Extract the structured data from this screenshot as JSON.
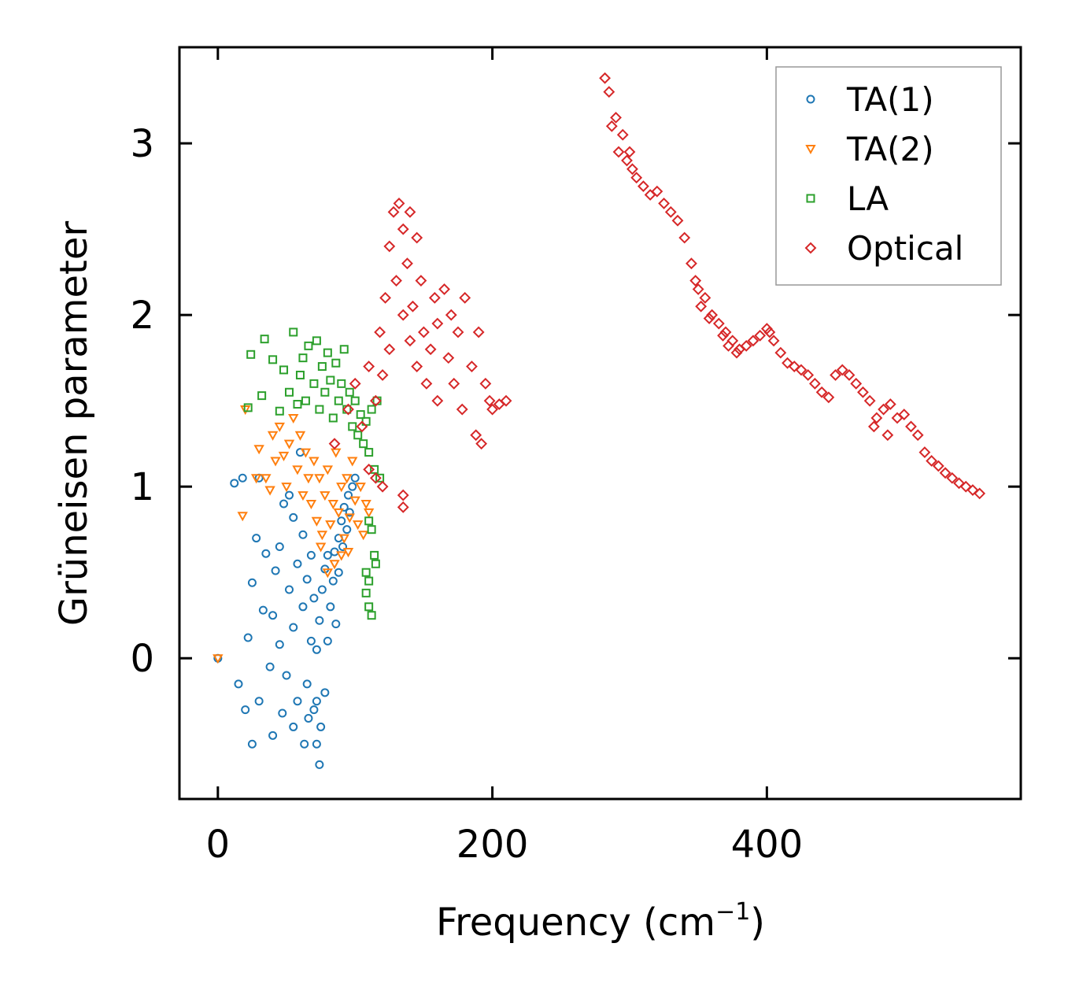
{
  "chart_data": {
    "type": "scatter",
    "title": "",
    "xlabel": "Frequency (cm",
    "xlabel_sup": "−1",
    "xlabel_tail": ")",
    "ylabel": "Grüneisen parameter",
    "xlim": [
      -28,
      585
    ],
    "ylim": [
      -0.82,
      3.56
    ],
    "xticks": [
      0,
      200,
      400
    ],
    "xtick_labels": [
      "0",
      "200",
      "400"
    ],
    "yticks": [
      0,
      1,
      2,
      3
    ],
    "ytick_labels": [
      "0",
      "1",
      "2",
      "3"
    ],
    "grid": false,
    "legend_position": "top-right",
    "series": [
      {
        "name": "TA(1)",
        "marker": "circle",
        "color": "#1f77b4",
        "points": [
          [
            0,
            0
          ],
          [
            12,
            1.02
          ],
          [
            18,
            1.05
          ],
          [
            22,
            0.12
          ],
          [
            25,
            0.44
          ],
          [
            28,
            0.7
          ],
          [
            30,
            1.05
          ],
          [
            33,
            0.28
          ],
          [
            35,
            0.61
          ],
          [
            38,
            -0.05
          ],
          [
            40,
            0.25
          ],
          [
            42,
            0.51
          ],
          [
            45,
            0.08
          ],
          [
            45,
            0.65
          ],
          [
            48,
            0.9
          ],
          [
            50,
            -0.1
          ],
          [
            52,
            0.4
          ],
          [
            52,
            0.95
          ],
          [
            55,
            0.18
          ],
          [
            55,
            0.82
          ],
          [
            58,
            -0.25
          ],
          [
            58,
            0.55
          ],
          [
            60,
            1.2
          ],
          [
            62,
            0.3
          ],
          [
            62,
            0.72
          ],
          [
            65,
            -0.15
          ],
          [
            65,
            0.46
          ],
          [
            68,
            0.1
          ],
          [
            68,
            0.6
          ],
          [
            70,
            -0.3
          ],
          [
            70,
            0.35
          ],
          [
            72,
            -0.5
          ],
          [
            72,
            0.05
          ],
          [
            74,
            -0.62
          ],
          [
            74,
            0.22
          ],
          [
            75,
            -0.4
          ],
          [
            76,
            0.4
          ],
          [
            78,
            -0.2
          ],
          [
            78,
            0.52
          ],
          [
            80,
            0.1
          ],
          [
            80,
            0.6
          ],
          [
            82,
            0.3
          ],
          [
            84,
            0.45
          ],
          [
            85,
            0.62
          ],
          [
            86,
            0.2
          ],
          [
            88,
            0.7
          ],
          [
            88,
            0.5
          ],
          [
            90,
            0.8
          ],
          [
            91,
            0.65
          ],
          [
            92,
            0.88
          ],
          [
            94,
            0.75
          ],
          [
            95,
            0.95
          ],
          [
            96,
            0.85
          ],
          [
            98,
            1.0
          ],
          [
            100,
            1.05
          ],
          [
            20,
            -0.3
          ],
          [
            15,
            -0.15
          ],
          [
            25,
            -0.5
          ],
          [
            30,
            -0.25
          ],
          [
            40,
            -0.45
          ],
          [
            47,
            -0.32
          ],
          [
            55,
            -0.4
          ],
          [
            63,
            -0.5
          ],
          [
            66,
            -0.35
          ],
          [
            72,
            -0.25
          ]
        ]
      },
      {
        "name": "TA(2)",
        "marker": "triangle-down",
        "color": "#ff7f0e",
        "points": [
          [
            0,
            0
          ],
          [
            18,
            0.83
          ],
          [
            20,
            1.45
          ],
          [
            28,
            1.05
          ],
          [
            30,
            1.22
          ],
          [
            35,
            1.05
          ],
          [
            38,
            0.98
          ],
          [
            40,
            1.3
          ],
          [
            42,
            1.15
          ],
          [
            45,
            1.35
          ],
          [
            48,
            1.18
          ],
          [
            50,
            1.0
          ],
          [
            52,
            1.25
          ],
          [
            55,
            1.4
          ],
          [
            58,
            1.1
          ],
          [
            60,
            1.3
          ],
          [
            62,
            0.95
          ],
          [
            64,
            1.2
          ],
          [
            66,
            1.05
          ],
          [
            68,
            0.9
          ],
          [
            70,
            1.15
          ],
          [
            72,
            0.8
          ],
          [
            74,
            1.05
          ],
          [
            76,
            0.72
          ],
          [
            78,
            0.95
          ],
          [
            80,
            1.1
          ],
          [
            82,
            0.78
          ],
          [
            84,
            0.9
          ],
          [
            86,
            1.2
          ],
          [
            88,
            0.85
          ],
          [
            90,
            1.0
          ],
          [
            92,
            0.7
          ],
          [
            94,
            1.05
          ],
          [
            96,
            0.82
          ],
          [
            98,
            1.15
          ],
          [
            100,
            0.92
          ],
          [
            102,
            0.78
          ],
          [
            104,
            1.0
          ],
          [
            106,
            0.72
          ],
          [
            108,
            0.9
          ],
          [
            110,
            0.85
          ],
          [
            85,
            0.55
          ],
          [
            90,
            0.6
          ],
          [
            95,
            0.62
          ],
          [
            75,
            0.65
          ],
          [
            80,
            0.5
          ]
        ]
      },
      {
        "name": "LA",
        "marker": "square",
        "color": "#2ca02c",
        "points": [
          [
            22,
            1.46
          ],
          [
            24,
            1.77
          ],
          [
            32,
            1.53
          ],
          [
            34,
            1.86
          ],
          [
            40,
            1.74
          ],
          [
            45,
            1.44
          ],
          [
            48,
            1.68
          ],
          [
            52,
            1.55
          ],
          [
            55,
            1.9
          ],
          [
            58,
            1.48
          ],
          [
            60,
            1.65
          ],
          [
            62,
            1.75
          ],
          [
            64,
            1.5
          ],
          [
            66,
            1.82
          ],
          [
            70,
            1.6
          ],
          [
            72,
            1.85
          ],
          [
            74,
            1.45
          ],
          [
            76,
            1.7
          ],
          [
            78,
            1.55
          ],
          [
            80,
            1.78
          ],
          [
            82,
            1.62
          ],
          [
            84,
            1.4
          ],
          [
            86,
            1.72
          ],
          [
            88,
            1.5
          ],
          [
            90,
            1.6
          ],
          [
            92,
            1.8
          ],
          [
            94,
            1.45
          ],
          [
            96,
            1.55
          ],
          [
            98,
            1.35
          ],
          [
            100,
            1.5
          ],
          [
            102,
            1.3
          ],
          [
            104,
            1.42
          ],
          [
            106,
            1.25
          ],
          [
            108,
            1.38
          ],
          [
            110,
            1.2
          ],
          [
            112,
            1.45
          ],
          [
            114,
            1.1
          ],
          [
            116,
            1.5
          ],
          [
            118,
            1.05
          ],
          [
            110,
            0.8
          ],
          [
            112,
            0.75
          ],
          [
            114,
            0.6
          ],
          [
            115,
            0.55
          ],
          [
            110,
            0.45
          ],
          [
            108,
            0.38
          ],
          [
            110,
            0.3
          ],
          [
            112,
            0.25
          ],
          [
            108,
            0.5
          ]
        ]
      },
      {
        "name": "Optical",
        "marker": "diamond",
        "color": "#d62728",
        "points": [
          [
            85,
            1.25
          ],
          [
            95,
            1.45
          ],
          [
            100,
            1.6
          ],
          [
            105,
            1.35
          ],
          [
            110,
            1.7
          ],
          [
            115,
            1.5
          ],
          [
            118,
            1.9
          ],
          [
            120,
            1.65
          ],
          [
            122,
            2.1
          ],
          [
            125,
            1.8
          ],
          [
            125,
            2.4
          ],
          [
            128,
            2.6
          ],
          [
            130,
            2.2
          ],
          [
            132,
            2.65
          ],
          [
            135,
            2.0
          ],
          [
            135,
            2.5
          ],
          [
            138,
            2.3
          ],
          [
            140,
            1.85
          ],
          [
            140,
            2.6
          ],
          [
            142,
            2.05
          ],
          [
            145,
            2.45
          ],
          [
            145,
            1.7
          ],
          [
            148,
            2.2
          ],
          [
            150,
            1.9
          ],
          [
            152,
            1.6
          ],
          [
            155,
            1.8
          ],
          [
            158,
            2.1
          ],
          [
            160,
            1.5
          ],
          [
            160,
            1.95
          ],
          [
            165,
            2.15
          ],
          [
            168,
            1.75
          ],
          [
            170,
            2.0
          ],
          [
            172,
            1.6
          ],
          [
            175,
            1.9
          ],
          [
            178,
            1.45
          ],
          [
            180,
            2.1
          ],
          [
            185,
            1.7
          ],
          [
            188,
            1.3
          ],
          [
            190,
            1.9
          ],
          [
            192,
            1.25
          ],
          [
            195,
            1.6
          ],
          [
            198,
            1.5
          ],
          [
            200,
            1.45
          ],
          [
            205,
            1.48
          ],
          [
            210,
            1.5
          ],
          [
            135,
            0.95
          ],
          [
            135,
            0.88
          ],
          [
            110,
            1.1
          ],
          [
            115,
            1.05
          ],
          [
            120,
            1.0
          ],
          [
            282,
            3.38
          ],
          [
            285,
            3.3
          ],
          [
            287,
            3.1
          ],
          [
            290,
            3.15
          ],
          [
            292,
            2.95
          ],
          [
            295,
            3.05
          ],
          [
            298,
            2.9
          ],
          [
            300,
            2.95
          ],
          [
            302,
            2.85
          ],
          [
            305,
            2.8
          ],
          [
            310,
            2.75
          ],
          [
            315,
            2.7
          ],
          [
            320,
            2.72
          ],
          [
            325,
            2.65
          ],
          [
            330,
            2.6
          ],
          [
            335,
            2.55
          ],
          [
            340,
            2.45
          ],
          [
            345,
            2.3
          ],
          [
            348,
            2.2
          ],
          [
            350,
            2.15
          ],
          [
            352,
            2.05
          ],
          [
            355,
            2.1
          ],
          [
            358,
            1.98
          ],
          [
            360,
            2.0
          ],
          [
            365,
            1.95
          ],
          [
            368,
            1.88
          ],
          [
            370,
            1.9
          ],
          [
            372,
            1.82
          ],
          [
            375,
            1.85
          ],
          [
            378,
            1.78
          ],
          [
            380,
            1.8
          ],
          [
            385,
            1.82
          ],
          [
            390,
            1.85
          ],
          [
            395,
            1.88
          ],
          [
            400,
            1.92
          ],
          [
            402,
            1.9
          ],
          [
            405,
            1.85
          ],
          [
            410,
            1.78
          ],
          [
            415,
            1.72
          ],
          [
            420,
            1.7
          ],
          [
            425,
            1.68
          ],
          [
            430,
            1.65
          ],
          [
            435,
            1.6
          ],
          [
            440,
            1.55
          ],
          [
            445,
            1.52
          ],
          [
            450,
            1.65
          ],
          [
            455,
            1.68
          ],
          [
            460,
            1.65
          ],
          [
            465,
            1.6
          ],
          [
            470,
            1.55
          ],
          [
            475,
            1.5
          ],
          [
            478,
            1.35
          ],
          [
            480,
            1.4
          ],
          [
            485,
            1.45
          ],
          [
            488,
            1.3
          ],
          [
            490,
            1.48
          ],
          [
            495,
            1.4
          ],
          [
            500,
            1.42
          ],
          [
            505,
            1.35
          ],
          [
            510,
            1.3
          ],
          [
            515,
            1.2
          ],
          [
            520,
            1.15
          ],
          [
            525,
            1.12
          ],
          [
            530,
            1.08
          ],
          [
            535,
            1.05
          ],
          [
            540,
            1.02
          ],
          [
            545,
            1.0
          ],
          [
            550,
            0.98
          ],
          [
            555,
            0.96
          ]
        ]
      }
    ]
  }
}
